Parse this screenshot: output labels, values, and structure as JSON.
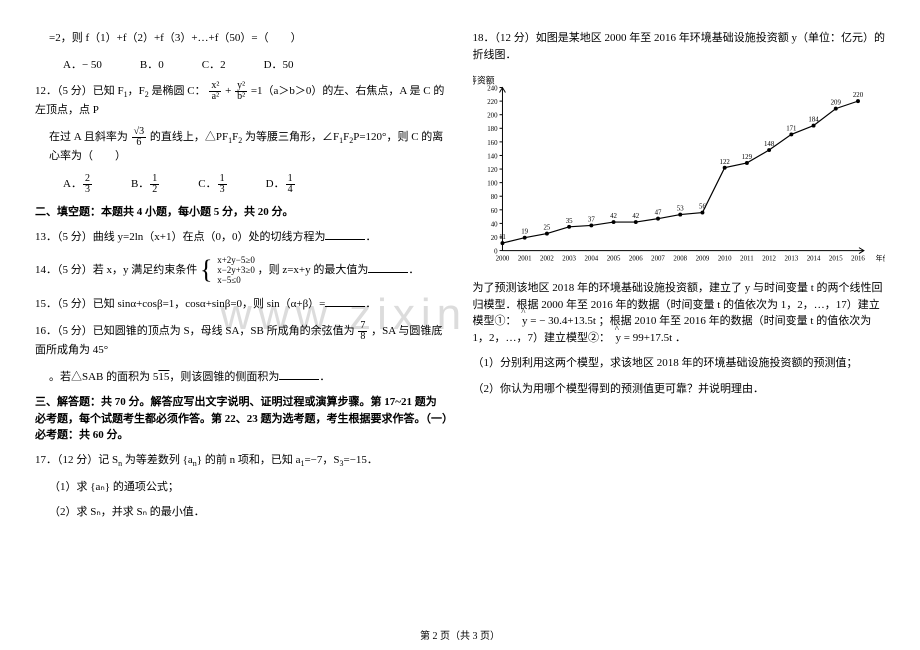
{
  "watermark": "www.zixin",
  "footer": "第 2 页（共 3 页）",
  "left": {
    "q11_tail": "=2，则 f（1）+f（2）+f（3）+…+f（50）=（　　）",
    "q11_choices": [
      "A．− 50",
      "B．0",
      "C．2",
      "D．50"
    ],
    "q12": {
      "prefix": "12．（5 分）已知 F",
      "sub1": "1",
      "mid1": "，F",
      "sub2": "2",
      "mid2": " 是椭圆 C：",
      "frac1_num": "x²",
      "frac1_den": "a²",
      "plus": "+",
      "frac2_num": "y²",
      "frac2_den": "b²",
      "eq": "=1（a＞b＞0）的左、右焦点，A 是 C 的左顶点，点 P",
      "line2_a": "在过 A 且斜率为",
      "slope_num": "√3",
      "slope_den": "6",
      "line2_b": "的直线上，△PF",
      "line2_c": "F",
      "line2_d": " 为等腰三角形，∠F",
      "line2_e": "F",
      "line2_f": "P=120°，则 C 的离心率为（　　）",
      "choices": [
        {
          "label": "A．",
          "num": "2",
          "den": "3"
        },
        {
          "label": "B．",
          "num": "1",
          "den": "2"
        },
        {
          "label": "C．",
          "num": "1",
          "den": "3"
        },
        {
          "label": "D．",
          "num": "1",
          "den": "4"
        }
      ]
    },
    "section2_title": "二、填空题：本题共 4 小题，每小题 5 分，共 20 分。",
    "q13": "13．（5 分）曲线 y=2ln（x+1）在点（0，0）处的切线方程为",
    "q14_a": "14．（5 分）若 x，y 满足约束条件",
    "q14_sys": [
      "x+2y−5≥0",
      "x−2y+3≥0",
      "x−5≤0"
    ],
    "q14_b": "，则 z=x+y 的最大值为",
    "q15": "15．（5 分）已知 sinα+cosβ=1，cosα+sinβ=0，则 sin（α+β）=",
    "q16_a": "16．（5 分）已知圆锥的顶点为 S，母线 SA，SB 所成角的余弦值为",
    "q16_num": "7",
    "q16_den": "8",
    "q16_b": "，SA 与圆锥底面所成角为 45°",
    "q16_c": "。若△SAB 的面积为 5",
    "q16_sqrt": "15",
    "q16_d": "，则该圆锥的侧面积为",
    "section3_title": "三、解答题：共 70 分。解答应写出文字说明、证明过程或演算步骤。第 17~21 题为必考题，每个试题考生都必须作答。第 22、23 题为选考题，考生根据要求作答。（一）必考题：共 60 分。",
    "q17_a": "17．（12 分）记 S",
    "q17_sub": "n",
    "q17_b": " 为等差数列 {a",
    "q17_c": "} 的前 n 项和，已知 a",
    "q17_d": "=−7，S",
    "q17_e": "=−15．",
    "q17_1": "（1）求 {aₙ} 的通项公式；",
    "q17_2": "（2）求 Sₙ，并求 Sₙ 的最小值．"
  },
  "right": {
    "q18_a": "18．（12 分）如图是某地区 2000 年至 2016 年环境基础设施投资额 y（单位：亿元）的折线图．",
    "chart": {
      "y_title": "筹资额",
      "x_title": "年份",
      "ylim": [
        0,
        240
      ],
      "ytick_step": 20,
      "x_values": [
        "2000",
        "2001",
        "2002",
        "2003",
        "2004",
        "2005",
        "2006",
        "2007",
        "2008",
        "2009",
        "2010",
        "2011",
        "2012",
        "2013",
        "2014",
        "2015",
        "2016"
      ],
      "y_values": [
        11,
        19,
        25,
        35,
        37,
        42,
        42,
        47,
        53,
        56,
        122,
        129,
        148,
        171,
        184,
        209,
        220
      ],
      "line_color": "#000000",
      "marker_color": "#000000",
      "background": "#ffffff",
      "axis_color": "#000000",
      "font_size_pt": 7
    },
    "q18_b": "为了预测该地区 2018 年的环境基础设施投资额，建立了 y 与时间变量 t 的两个线性回归模型．根据 2000 年至 2016 年的数据（时间变量 t 的值依次为 1，2，…，17）建立模型①：",
    "model1": "y = − 30.4+13.5t",
    "q18_c": "；根据 2010 年至 2016 年的数据（时间变量 t 的值依次为 1，2，…，7）建立模型②：",
    "model2": "y = 99+17.5t",
    "period": "．",
    "q18_1": "（1）分别利用这两个模型，求该地区 2018 年的环境基础设施投资额的预测值；",
    "q18_2": "（2）你认为用哪个模型得到的预测值更可靠？并说明理由．"
  }
}
